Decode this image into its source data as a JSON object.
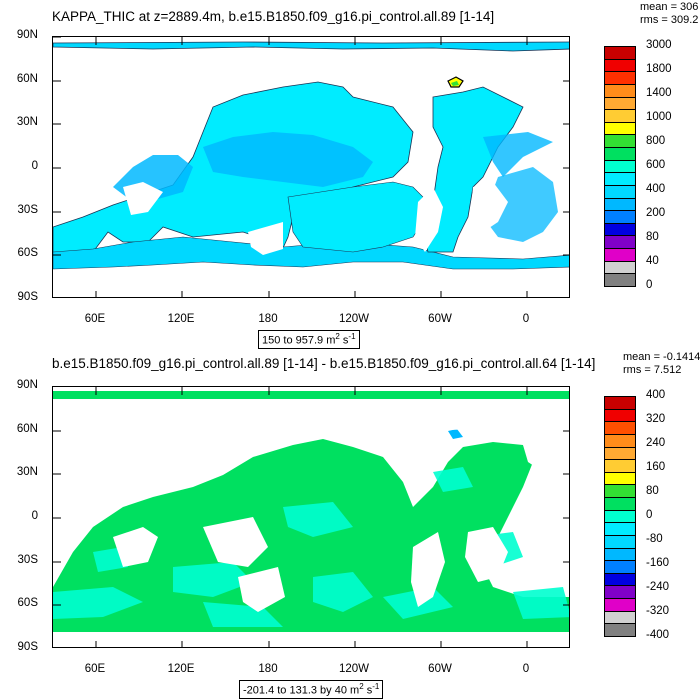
{
  "panel1": {
    "title": "KAPPA_THIC at z=2889.4m, b.e15.B1850.f09_g16.pi_control.all.89 [1-14]",
    "mean": "mean = 306",
    "rms": "rms = 309.2",
    "range_text": "150 to 957.9 m",
    "range_units_sup": "2",
    "range_units_tail": " s",
    "range_units_sup2": "-1",
    "colorbar_labels": [
      "3000",
      "1800",
      "1400",
      "1000",
      "800",
      "600",
      "400",
      "200",
      "80",
      "40",
      "0"
    ],
    "colorbar_colors": [
      "#c80000",
      "#f00000",
      "#ff3000",
      "#ff8c1a",
      "#ffaa33",
      "#ffcc33",
      "#ffff00",
      "#33e033",
      "#00e060",
      "#00ffd0",
      "#00ecff",
      "#00d8ff",
      "#00b8ff",
      "#0080ff",
      "#0000e0",
      "#8000c8",
      "#e000c8",
      "#d0d0d0",
      "#808080"
    ]
  },
  "panel2": {
    "title": "b.e15.B1850.f09_g16.pi_control.all.89 [1-14] - b.e15.B1850.f09_g16.pi_control.all.64 [1-14]",
    "mean": "mean = -0.1414",
    "rms": "rms = 7.512",
    "range_text": "-201.4 to 131.3 by 40 m",
    "range_units_sup": "2",
    "range_units_tail": " s",
    "range_units_sup2": "-1",
    "colorbar_labels": [
      "400",
      "320",
      "240",
      "160",
      "80",
      "0",
      "-80",
      "-160",
      "-240",
      "-320",
      "-400"
    ],
    "colorbar_colors": [
      "#c80000",
      "#f00000",
      "#ff5000",
      "#ff8c1a",
      "#ffaa33",
      "#ffcc33",
      "#ffff00",
      "#33e033",
      "#00e060",
      "#00ffd0",
      "#00ecff",
      "#00d8ff",
      "#00b8ff",
      "#0080ff",
      "#0000e0",
      "#8000c8",
      "#e000c8",
      "#d0d0d0",
      "#808080"
    ]
  },
  "axes": {
    "lat_ticks": [
      "90N",
      "60N",
      "30N",
      "0",
      "30S",
      "60S",
      "90S"
    ],
    "lon_ticks": [
      "60E",
      "120E",
      "180",
      "120W",
      "60W",
      "0"
    ]
  },
  "chart_data": [
    {
      "type": "heatmap",
      "title": "KAPPA_THIC at z=2889.4m, b.e15.B1850.f09_g16.pi_control.all.89 [1-14]",
      "units": "m2 s-1",
      "value_range": [
        150,
        957.9
      ],
      "mean": 306,
      "rms": 309.2,
      "colorbar_levels": [
        0,
        40,
        80,
        200,
        400,
        600,
        800,
        1000,
        1400,
        1800,
        3000
      ],
      "dominant_value_band": [
        200,
        600
      ],
      "lat_range": [
        -90,
        90
      ],
      "lon_range": [
        20,
        380
      ],
      "grid": false
    },
    {
      "type": "heatmap",
      "title": "b.e15.B1850.f09_g16.pi_control.all.89 [1-14] - b.e15.B1850.f09_g16.pi_control.all.64 [1-14]",
      "units": "m2 s-1",
      "value_range": [
        -201.4,
        131.3
      ],
      "contour_interval": 40,
      "mean": -0.1414,
      "rms": 7.512,
      "colorbar_levels": [
        -400,
        -320,
        -240,
        -160,
        -80,
        0,
        80,
        160,
        240,
        320,
        400
      ],
      "dominant_value_band": [
        -80,
        80
      ],
      "lat_range": [
        -90,
        90
      ],
      "lon_range": [
        20,
        380
      ],
      "grid": false
    }
  ]
}
